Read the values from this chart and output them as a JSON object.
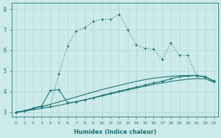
{
  "xlabel": "Humidex (Indice chaleur)",
  "xlim": [
    -0.5,
    23.5
  ],
  "ylim": [
    2.8,
    8.3
  ],
  "yticks": [
    3,
    4,
    5,
    6,
    7,
    8
  ],
  "xticks": [
    0,
    1,
    2,
    3,
    4,
    5,
    6,
    7,
    8,
    9,
    10,
    11,
    12,
    13,
    14,
    15,
    16,
    17,
    18,
    19,
    20,
    21,
    22,
    23
  ],
  "background_color": "#cceaea",
  "grid_color": "#b0d4d4",
  "line_color": "#1a7070",
  "series": [
    {
      "x": [
        0,
        1,
        2,
        3,
        4,
        5,
        6,
        7,
        8,
        9,
        10,
        11,
        12,
        13,
        14,
        15,
        16,
        17,
        18,
        19,
        20,
        21,
        22,
        23
      ],
      "y": [
        3.0,
        3.05,
        3.2,
        3.25,
        3.3,
        4.85,
        6.2,
        6.95,
        7.1,
        7.4,
        7.5,
        7.5,
        7.75,
        7.0,
        6.25,
        6.1,
        6.05,
        5.55,
        6.35,
        5.75,
        5.75,
        4.75,
        4.7,
        4.5
      ],
      "style": "dotted",
      "marker": "+",
      "markersize": 3.5,
      "linewidth": 0.8
    },
    {
      "x": [
        0,
        1,
        2,
        3,
        4,
        5,
        6,
        7,
        8,
        9,
        10,
        11,
        12,
        13,
        14,
        15,
        16,
        17,
        18,
        19,
        20,
        21,
        22,
        23
      ],
      "y": [
        3.0,
        3.05,
        3.2,
        3.3,
        4.05,
        4.1,
        3.45,
        3.5,
        3.6,
        3.7,
        3.82,
        3.92,
        4.02,
        4.12,
        4.22,
        4.32,
        4.42,
        4.5,
        4.62,
        4.72,
        4.75,
        4.78,
        4.72,
        4.52
      ],
      "style": "solid",
      "marker": "+",
      "markersize": 3.5,
      "linewidth": 0.8
    },
    {
      "x": [
        0,
        1,
        2,
        3,
        4,
        5,
        6,
        7,
        8,
        9,
        10,
        11,
        12,
        13,
        14,
        15,
        16,
        17,
        18,
        19,
        20,
        21,
        22,
        23
      ],
      "y": [
        3.0,
        3.08,
        3.18,
        3.28,
        3.38,
        3.5,
        3.62,
        3.74,
        3.86,
        3.98,
        4.1,
        4.2,
        4.3,
        4.4,
        4.5,
        4.58,
        4.65,
        4.7,
        4.74,
        4.77,
        4.78,
        4.78,
        4.72,
        4.5
      ],
      "style": "solid",
      "marker": "None",
      "markersize": 0,
      "linewidth": 0.8
    },
    {
      "x": [
        0,
        1,
        2,
        3,
        4,
        5,
        6,
        7,
        8,
        9,
        10,
        11,
        12,
        13,
        14,
        15,
        16,
        17,
        18,
        19,
        20,
        21,
        22,
        23
      ],
      "y": [
        3.0,
        3.05,
        3.12,
        3.18,
        3.25,
        3.33,
        3.42,
        3.51,
        3.6,
        3.69,
        3.79,
        3.89,
        3.99,
        4.08,
        4.17,
        4.26,
        4.35,
        4.42,
        4.49,
        4.55,
        4.6,
        4.63,
        4.62,
        4.46
      ],
      "style": "solid",
      "marker": "None",
      "markersize": 0,
      "linewidth": 0.8
    }
  ]
}
